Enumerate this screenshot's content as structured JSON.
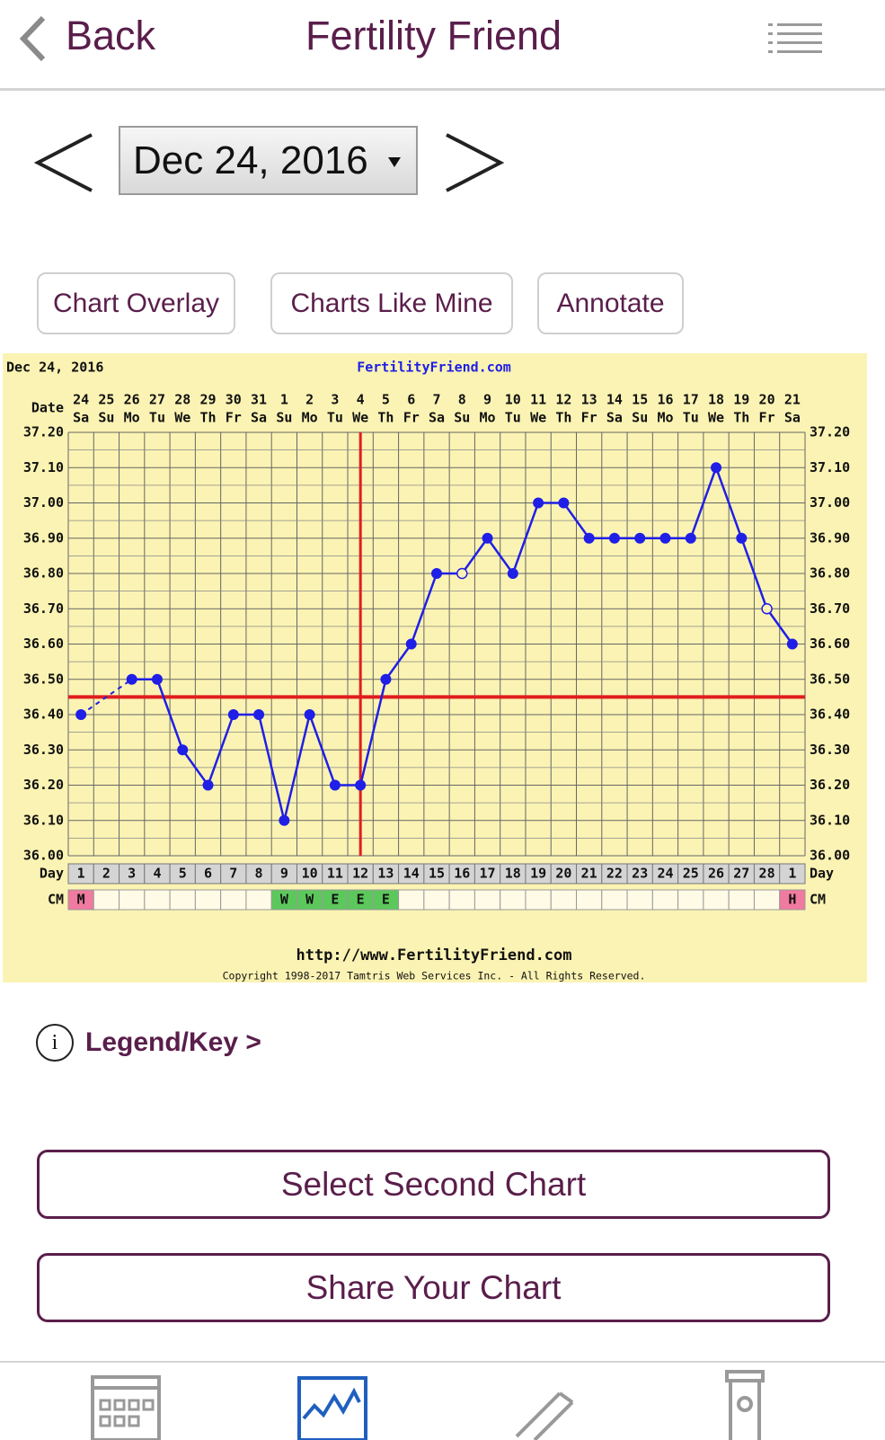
{
  "nav": {
    "back": "Back",
    "title": "Fertility Friend"
  },
  "date_picker": {
    "date": "Dec 24, 2016"
  },
  "buttons": [
    "Chart Overlay",
    "Charts Like Mine",
    "Annotate"
  ],
  "legend": {
    "icon": "i",
    "label": "Legend/Key >"
  },
  "actions": [
    "Select Second Chart",
    "Share Your Chart"
  ],
  "chart_data": {
    "type": "line",
    "title": "Dec 24, 2016",
    "subtitle": "FertilityFriend.com",
    "date_label": "Date",
    "day_label": "Day",
    "cm_label": "CM",
    "dates": [
      "24",
      "25",
      "26",
      "27",
      "28",
      "29",
      "30",
      "31",
      "1",
      "2",
      "3",
      "4",
      "5",
      "6",
      "7",
      "8",
      "9",
      "10",
      "11",
      "12",
      "13",
      "14",
      "15",
      "16",
      "17",
      "18",
      "19",
      "20",
      "21"
    ],
    "weekdays": [
      "Sa",
      "Su",
      "Mo",
      "Tu",
      "We",
      "Th",
      "Fr",
      "Sa",
      "Su",
      "Mo",
      "Tu",
      "We",
      "Th",
      "Fr",
      "Sa",
      "Su",
      "Mo",
      "Tu",
      "We",
      "Th",
      "Fr",
      "Sa",
      "Su",
      "Mo",
      "Tu",
      "We",
      "Th",
      "Fr",
      "Sa"
    ],
    "categories": [
      "1",
      "2",
      "3",
      "4",
      "5",
      "6",
      "7",
      "8",
      "9",
      "10",
      "11",
      "12",
      "13",
      "14",
      "15",
      "16",
      "17",
      "18",
      "19",
      "20",
      "21",
      "22",
      "23",
      "24",
      "25",
      "26",
      "27",
      "28",
      "1"
    ],
    "values": [
      36.4,
      null,
      36.5,
      36.5,
      36.3,
      36.2,
      36.4,
      36.4,
      36.1,
      36.4,
      36.2,
      36.2,
      36.5,
      36.6,
      36.8,
      36.8,
      36.9,
      36.8,
      37.0,
      37.0,
      36.9,
      36.9,
      36.9,
      36.9,
      36.9,
      37.1,
      36.9,
      36.7,
      36.6
    ],
    "hollow": [
      false,
      false,
      false,
      false,
      false,
      false,
      false,
      false,
      false,
      false,
      false,
      false,
      false,
      false,
      false,
      true,
      false,
      false,
      false,
      false,
      false,
      false,
      false,
      false,
      false,
      false,
      false,
      true,
      false
    ],
    "color": "#1f1fe6",
    "ylim": [
      36.0,
      37.2
    ],
    "yticks": [
      {
        "value": 36.0,
        "label": "36.00"
      },
      {
        "value": 36.1,
        "label": "36.10"
      },
      {
        "value": 36.2,
        "label": "36.20"
      },
      {
        "value": 36.3,
        "label": "36.30"
      },
      {
        "value": 36.4,
        "label": "36.40"
      },
      {
        "value": 36.5,
        "label": "36.50"
      },
      {
        "value": 36.6,
        "label": "36.60"
      },
      {
        "value": 36.7,
        "label": "36.70"
      },
      {
        "value": 36.8,
        "label": "36.80"
      },
      {
        "value": 36.9,
        "label": "36.90"
      },
      {
        "value": 37.0,
        "label": "37.00"
      },
      {
        "value": 37.1,
        "label": "37.10"
      },
      {
        "value": 37.2,
        "label": "37.20"
      }
    ],
    "grid": true,
    "coverline": 36.45,
    "ovulation": "12",
    "reference_color": "#e01e1e",
    "cm": [
      "M",
      null,
      null,
      null,
      null,
      null,
      null,
      null,
      "W",
      "W",
      "E",
      "E",
      "E",
      null,
      null,
      null,
      null,
      null,
      null,
      null,
      null,
      null,
      null,
      null,
      null,
      null,
      null,
      null,
      "H"
    ],
    "cm_colors": {
      "M": "#f07aa0",
      "W": "#5cc85c",
      "E": "#5cc85c",
      "H": "#f07aa0"
    },
    "footer_url": "http://www.FertilityFriend.com",
    "copyright": "Copyright 1998-2017 Tamtris Web Services Inc. - All Rights Reserved."
  }
}
